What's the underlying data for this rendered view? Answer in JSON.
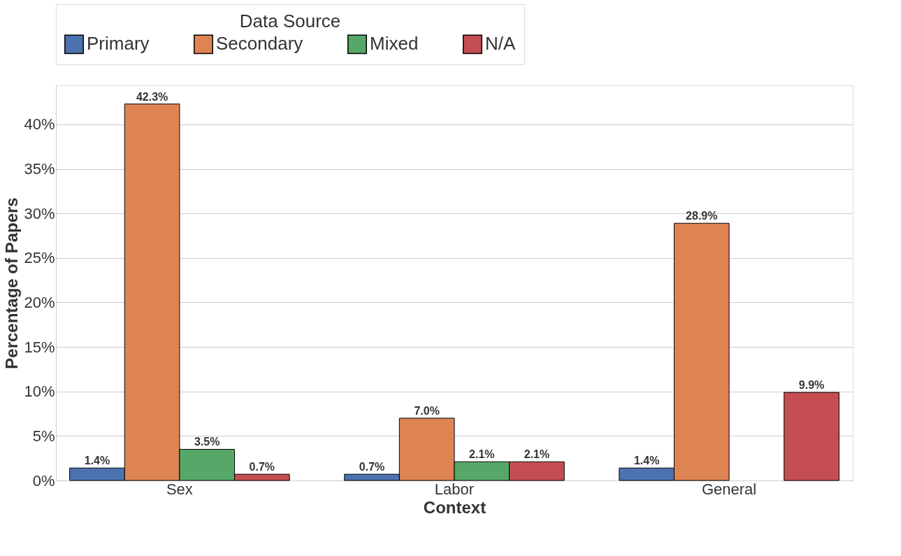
{
  "chart_data": {
    "type": "bar",
    "xlabel": "Context",
    "ylabel": "Percentage of Papers",
    "legend_title": "Data Source",
    "legend": "top",
    "grid": "y",
    "categories": [
      "Sex",
      "Labor",
      "General"
    ],
    "series": [
      {
        "name": "Primary",
        "color": "#4c72b0",
        "values": [
          1.4,
          0.7,
          1.4
        ],
        "value_labels": [
          "1.4%",
          "0.7%",
          "1.4%"
        ]
      },
      {
        "name": "Secondary",
        "color": "#dd8452",
        "values": [
          42.3,
          7.0,
          28.9
        ],
        "value_labels": [
          "42.3%",
          "7.0%",
          "28.9%"
        ]
      },
      {
        "name": "Mixed",
        "color": "#55a868",
        "values": [
          3.5,
          2.1,
          null
        ],
        "value_labels": [
          "3.5%",
          "2.1%",
          null
        ]
      },
      {
        "name": "N/A",
        "color": "#c44e52",
        "values": [
          0.7,
          2.1,
          9.9
        ],
        "value_labels": [
          "0.7%",
          "2.1%",
          "9.9%"
        ]
      }
    ],
    "ylim": [
      0,
      44.4
    ],
    "yticks": [
      {
        "value": 0,
        "label": "0%"
      },
      {
        "value": 5,
        "label": "5%"
      },
      {
        "value": 10,
        "label": "10%"
      },
      {
        "value": 15,
        "label": "15%"
      },
      {
        "value": 20,
        "label": "20%"
      },
      {
        "value": 25,
        "label": "25%"
      },
      {
        "value": 30,
        "label": "30%"
      },
      {
        "value": 35,
        "label": "35%"
      },
      {
        "value": 40,
        "label": "40%"
      }
    ]
  }
}
